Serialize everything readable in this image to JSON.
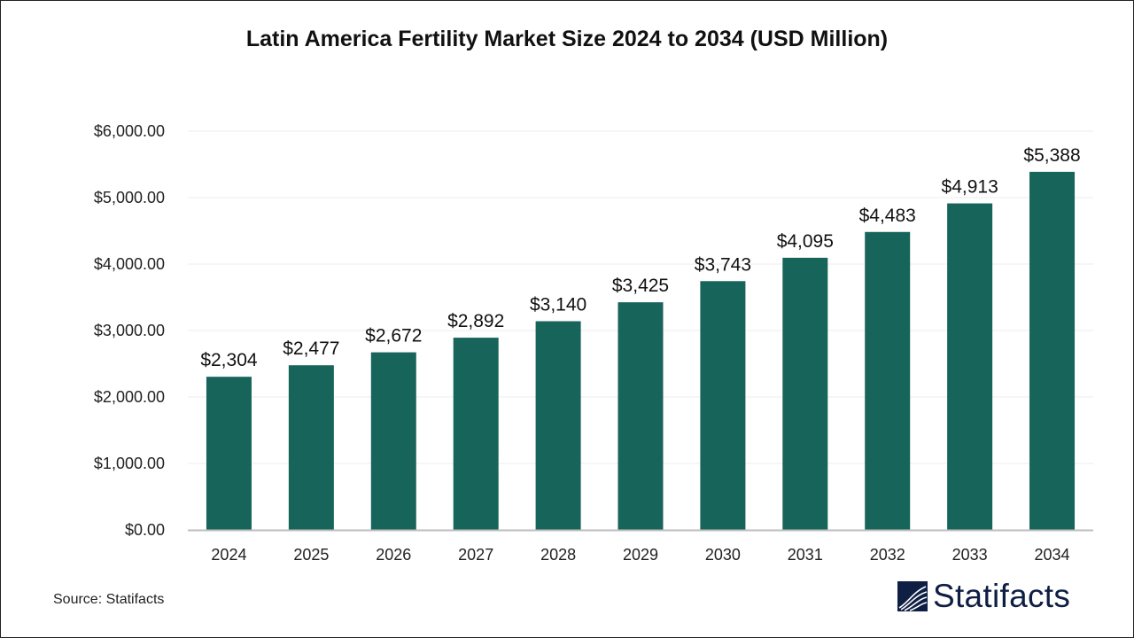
{
  "chart_data": {
    "type": "bar",
    "title": "Latin America Fertility Market Size 2024 to 2034 (USD Million)",
    "categories": [
      "2024",
      "2025",
      "2026",
      "2027",
      "2028",
      "2029",
      "2030",
      "2031",
      "2032",
      "2033",
      "2034"
    ],
    "values": [
      2304,
      2477,
      2672,
      2892,
      3140,
      3425,
      3743,
      4095,
      4483,
      4913,
      5388
    ],
    "data_labels": [
      "$2,304",
      "$2,477",
      "$2,672",
      "$2,892",
      "$3,140",
      "$3,425",
      "$3,743",
      "$4,095",
      "$4,483",
      "$4,913",
      "$5,388"
    ],
    "y_ticks": [
      0,
      1000,
      2000,
      3000,
      4000,
      5000,
      6000
    ],
    "y_tick_labels": [
      "$0.00",
      "$1,000.00",
      "$2,000.00",
      "$3,000.00",
      "$4,000.00",
      "$5,000.00",
      "$6,000.00"
    ],
    "ylim": [
      0,
      6000
    ],
    "xlabel": "",
    "ylabel": "",
    "grid": true,
    "bar_color": "#17645a"
  },
  "source": "Source: Statifacts",
  "logo": {
    "text": "Statifacts",
    "color": "#0f1f44"
  }
}
